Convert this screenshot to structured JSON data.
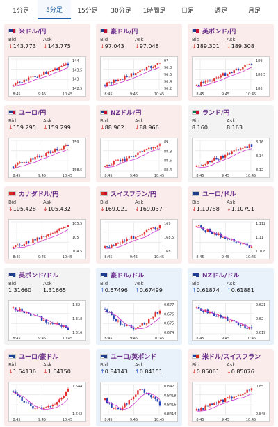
{
  "tabs": [
    {
      "label": "1分足",
      "active": false
    },
    {
      "label": "5分足",
      "active": true
    },
    {
      "label": "15分足",
      "active": false
    },
    {
      "label": "30分足",
      "active": false
    },
    {
      "label": "1時間足",
      "active": false
    },
    {
      "label": "日足",
      "active": false
    },
    {
      "label": "週足",
      "active": false
    },
    {
      "label": "月足",
      "active": false
    }
  ],
  "labels": {
    "bid": "Bid",
    "ask": "Ask"
  },
  "colors": {
    "up": "#2a62c9",
    "down": "#d3352e",
    "candle_up": "#e03030",
    "candle_down": "#2540b0",
    "ma": "#cc33cc"
  },
  "cards": [
    {
      "pair": "米ドル/円",
      "bid": "143.773",
      "ask": "143.775",
      "dir": "down",
      "ticks": [
        "144",
        "143.5",
        "143",
        "142.5"
      ],
      "times": [
        "8:45",
        "9:45",
        "10:45"
      ],
      "trend": "up",
      "flags": [
        "#1f3d8a",
        "#c8102e"
      ]
    },
    {
      "pair": "豪ドル/円",
      "bid": "97.043",
      "ask": "97.048",
      "dir": "down",
      "ticks": [
        "97",
        "96.8",
        "96.6",
        "96.4",
        "96.2"
      ],
      "times": [
        "8:45",
        "9:45",
        "10:45"
      ],
      "trend": "up",
      "flags": [
        "#1f3d8a",
        "#c8102e"
      ]
    },
    {
      "pair": "英ポンド/円",
      "bid": "189.301",
      "ask": "189.308",
      "dir": "down",
      "ticks": [
        "189",
        "188.5",
        "188"
      ],
      "times": [
        "8:45",
        "9:45",
        "10:45"
      ],
      "trend": "up",
      "flags": [
        "#1f3d8a",
        "#c8102e"
      ]
    },
    {
      "pair": "ユーロ/円",
      "bid": "159.295",
      "ask": "159.299",
      "dir": "down",
      "ticks": [
        "159",
        "158.5"
      ],
      "times": [
        "8:45",
        "9:45",
        "10:45"
      ],
      "trend": "up",
      "flags": [
        "#1f3d8a",
        "#c8102e"
      ]
    },
    {
      "pair": "NZドル/円",
      "bid": "88.962",
      "ask": "88.966",
      "dir": "down",
      "ticks": [
        "89",
        "88.8",
        "88.6",
        "88.4"
      ],
      "times": [
        "8:45",
        "9:45",
        "10:45"
      ],
      "trend": "up",
      "flags": [
        "#1f3d8a",
        "#c8102e"
      ]
    },
    {
      "pair": "ランド/円",
      "bid": "8.160",
      "ask": "8.163",
      "dir": "none",
      "ticks": [
        "8.16",
        "8.14",
        "8.12"
      ],
      "times": [
        "8:45",
        "9:45",
        "10:45"
      ],
      "trend": "up",
      "flags": [
        "#007a4d",
        "#c8102e"
      ]
    },
    {
      "pair": "カナダドル/円",
      "bid": "105.428",
      "ask": "105.432",
      "dir": "down",
      "ticks": [
        "105.5",
        "105",
        "104.5"
      ],
      "times": [
        "8:45",
        "9:45",
        "10:45"
      ],
      "trend": "up",
      "flags": [
        "#d52b1e",
        "#c8102e"
      ]
    },
    {
      "pair": "スイスフラン/円",
      "bid": "169.021",
      "ask": "169.037",
      "dir": "down",
      "ticks": [
        "169",
        "168.5",
        "168"
      ],
      "times": [
        "8:45",
        "9:45",
        "10:45"
      ],
      "trend": "up",
      "flags": [
        "#d52b1e",
        "#c8102e"
      ]
    },
    {
      "pair": "ユーロ/ドル",
      "bid": "1.10788",
      "ask": "1.10791",
      "dir": "down",
      "ticks": [
        "1.112",
        "1.11",
        "1.108"
      ],
      "times": [
        "8:45",
        "9:45",
        "10:45"
      ],
      "trend": "down",
      "flags": [
        "#1f3d8a",
        "#1f3d8a"
      ]
    },
    {
      "pair": "英ポンド/ドル",
      "bid": "1.31660",
      "ask": "1.31665",
      "dir": "none",
      "ticks": [
        "1.32",
        "1.318",
        "1.316"
      ],
      "times": [
        "8:45",
        "9:45",
        "10:45"
      ],
      "trend": "down",
      "flags": [
        "#1f3d8a",
        "#1f3d8a"
      ]
    },
    {
      "pair": "豪ドル/ドル",
      "bid": "0.67496",
      "ask": "0.67499",
      "dir": "up",
      "ticks": [
        "0.677",
        "0.676",
        "0.675",
        "0.674"
      ],
      "times": [
        "8:45",
        "9:45",
        "10:45"
      ],
      "trend": "downup",
      "flags": [
        "#1f3d8a",
        "#1f3d8a"
      ]
    },
    {
      "pair": "NZドル/ドル",
      "bid": "0.61874",
      "ask": "0.61881",
      "dir": "up",
      "ticks": [
        "0.621",
        "0.62",
        "0.619"
      ],
      "times": [
        "8:45",
        "9:45",
        "10:45"
      ],
      "trend": "down",
      "flags": [
        "#1f3d8a",
        "#1f3d8a"
      ]
    },
    {
      "pair": "ユーロ/豪ドル",
      "bid": "1.64136",
      "ask": "1.64150",
      "dir": "down",
      "ticks": [
        "1.644",
        "1.642"
      ],
      "times": [
        "8:45",
        "9:45",
        "10:45"
      ],
      "trend": "downup",
      "flags": [
        "#1f3d8a",
        "#1f3d8a"
      ]
    },
    {
      "pair": "ユーロ/英ポンド",
      "bid": "0.84143",
      "ask": "0.84151",
      "dir": "up",
      "ticks": [
        "0.842",
        "0.8418",
        "0.8416",
        "0.8414"
      ],
      "times": [
        "8:45",
        "9:45",
        "10:45"
      ],
      "trend": "wave",
      "flags": [
        "#1f3d8a",
        "#1f3d8a"
      ]
    },
    {
      "pair": "米ドル/スイスフラン",
      "bid": "0.85061",
      "ask": "0.85076",
      "dir": "down",
      "ticks": [
        "0.85",
        "0.848"
      ],
      "times": [
        "8:45",
        "9:45",
        "10:45"
      ],
      "trend": "up",
      "flags": [
        "#1f3d8a",
        "#d52b1e"
      ]
    }
  ]
}
